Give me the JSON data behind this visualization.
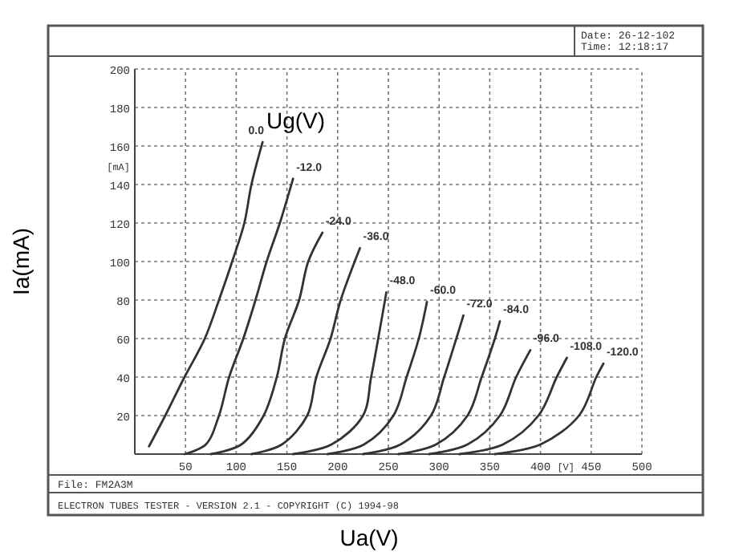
{
  "chart_data": {
    "type": "line",
    "xlabel": "Ua(V)",
    "ylabel": "Ia(mA)",
    "annotations": [
      "Ug(V)",
      "[mA]",
      "[V]",
      "Date: 26-12-102",
      "Time: 12:18:17",
      "File: FM2A3M",
      "ELECTRON TUBES TESTER - VERSION 2.1 - COPYRIGHT (C) 1994-98"
    ],
    "xlim": [
      0,
      500
    ],
    "ylim": [
      0,
      200
    ],
    "xticks": [
      50,
      100,
      150,
      200,
      250,
      300,
      350,
      400,
      450,
      500
    ],
    "yticks": [
      20,
      40,
      60,
      80,
      100,
      120,
      140,
      160,
      180,
      200
    ],
    "grid": true,
    "marker": "none",
    "line_style": "solid",
    "series": [
      {
        "name": "0.0",
        "color": "#333333",
        "x": [
          14,
          30,
          49,
          69,
          83,
          96,
          108,
          115,
          126
        ],
        "values": [
          4,
          20,
          40,
          60,
          80,
          100,
          120,
          140,
          162
        ]
      },
      {
        "name": "-12.0",
        "color": "#333333",
        "x": [
          49,
          70,
          83,
          93,
          107,
          119,
          130,
          143,
          156
        ],
        "values": [
          0,
          5,
          20,
          40,
          60,
          80,
          100,
          120,
          143
        ]
      },
      {
        "name": "-24.0",
        "color": "#333333",
        "x": [
          75,
          105,
          127,
          140,
          148,
          162,
          171,
          185
        ],
        "values": [
          0,
          5,
          20,
          40,
          60,
          80,
          100,
          115
        ]
      },
      {
        "name": "-36.0",
        "color": "#333333",
        "x": [
          115,
          145,
          170,
          179,
          193,
          203,
          222
        ],
        "values": [
          0,
          5,
          20,
          40,
          60,
          80,
          107
        ]
      },
      {
        "name": "-48.0",
        "color": "#333333",
        "x": [
          156,
          194,
          225,
          233,
          240,
          248
        ],
        "values": [
          0,
          5,
          20,
          40,
          60,
          84
        ]
      },
      {
        "name": "-60.0",
        "color": "#333333",
        "x": [
          190,
          226,
          255,
          268,
          280,
          288
        ],
        "values": [
          0,
          5,
          20,
          40,
          60,
          79
        ]
      },
      {
        "name": "-72.0",
        "color": "#333333",
        "x": [
          225,
          262,
          292,
          305,
          317,
          324
        ],
        "values": [
          0,
          5,
          20,
          40,
          60,
          72
        ]
      },
      {
        "name": "-84.0",
        "color": "#333333",
        "x": [
          260,
          297,
          328,
          342,
          355,
          360
        ],
        "values": [
          0,
          5,
          20,
          40,
          60,
          69
        ]
      },
      {
        "name": "-96.0",
        "color": "#333333",
        "x": [
          290,
          328,
          360,
          376,
          390
        ],
        "values": [
          0,
          5,
          20,
          40,
          54
        ]
      },
      {
        "name": "-108.0",
        "color": "#333333",
        "x": [
          320,
          363,
          398,
          416,
          426
        ],
        "values": [
          0,
          5,
          20,
          40,
          50
        ]
      },
      {
        "name": "-120.0",
        "color": "#333333",
        "x": [
          355,
          400,
          438,
          455,
          462
        ],
        "values": [
          0,
          5,
          20,
          40,
          47
        ]
      }
    ]
  }
}
